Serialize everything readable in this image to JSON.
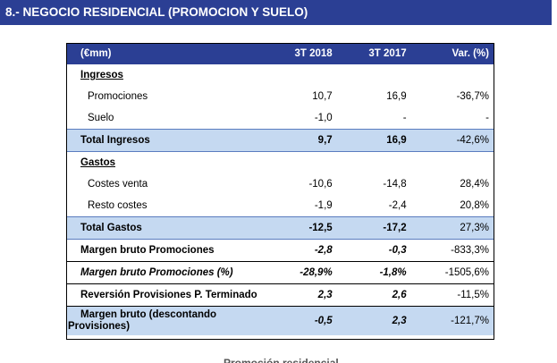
{
  "banner": {
    "title": "8.- NEGOCIO RESIDENCIAL (PROMOCION Y SUELO)"
  },
  "table": {
    "headers": [
      "(€mm)",
      "3T 2018",
      "3T 2017",
      "Var. (%)"
    ],
    "ingresos_label": "Ingresos",
    "promociones": {
      "label": "Promociones",
      "v2018": "10,7",
      "v2017": "16,9",
      "var": "-36,7%"
    },
    "suelo": {
      "label": "Suelo",
      "v2018": "-1,0",
      "v2017": "-",
      "var": "-"
    },
    "total_ingresos": {
      "label": "Total Ingresos",
      "v2018": "9,7",
      "v2017": "16,9",
      "var": "-42,6%"
    },
    "gastos_label": "Gastos",
    "costes_venta": {
      "label": "Costes venta",
      "v2018": "-10,6",
      "v2017": "-14,8",
      "var": "28,4%"
    },
    "resto_costes": {
      "label": "Resto costes",
      "v2018": "-1,9",
      "v2017": "-2,4",
      "var": "20,8%"
    },
    "total_gastos": {
      "label": "Total Gastos",
      "v2018": "-12,5",
      "v2017": "-17,2",
      "var": "27,3%"
    },
    "margen_bruto": {
      "label": "Margen bruto Promociones",
      "v2018": "-2,8",
      "v2017": "-0,3",
      "var": "-833,3%"
    },
    "margen_bruto_pct": {
      "label": "Margen bruto Promociones (%)",
      "v2018": "-28,9%",
      "v2017": "-1,8%",
      "var": "-1505,6%"
    },
    "reversion": {
      "label": "Reversión Provisiones P. Terminado",
      "v2018": "2,3",
      "v2017": "2,6",
      "var": "-11,5%"
    },
    "margen_desc": {
      "label_line1": "Margen bruto (descontando",
      "label_line2": "Provisiones)",
      "v2018": "-0,5",
      "v2017": "2,3",
      "var": "-121,7%"
    }
  },
  "footer_partial": "Promoción residencial"
}
